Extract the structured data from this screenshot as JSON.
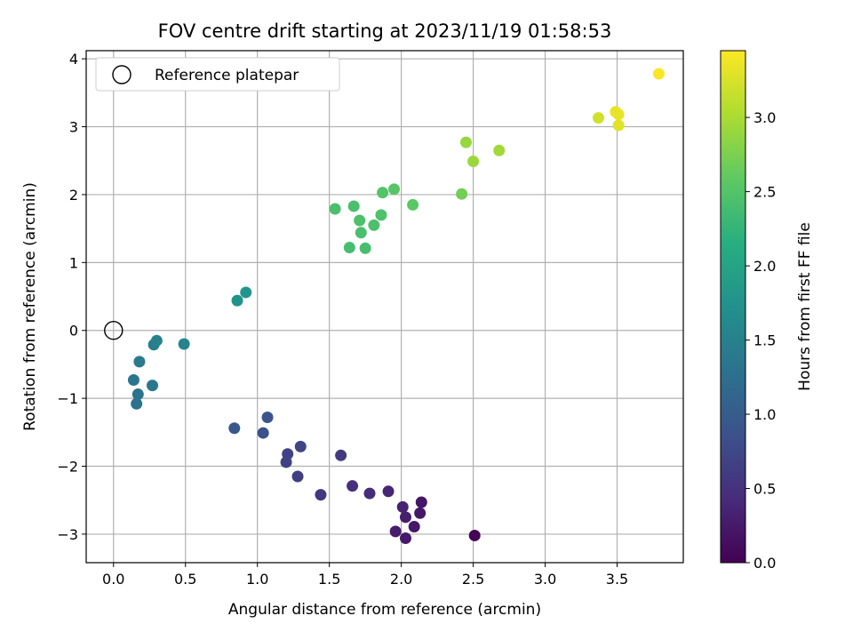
{
  "chart_data": {
    "type": "scatter",
    "title": "FOV centre drift starting at 2023/11/19 01:58:53",
    "xlabel": "Angular distance from reference (arcmin)",
    "ylabel": "Rotation from reference (arcmin)",
    "xlim": [
      -0.19,
      3.96
    ],
    "ylim": [
      -3.42,
      4.12
    ],
    "x_ticks": [
      0.0,
      0.5,
      1.0,
      1.5,
      2.0,
      2.5,
      3.0,
      3.5
    ],
    "x_tick_labels": [
      "0.0",
      "0.5",
      "1.0",
      "1.5",
      "2.0",
      "2.5",
      "3.0",
      "3.5"
    ],
    "y_ticks": [
      -3,
      -2,
      -1,
      0,
      1,
      2,
      3,
      4
    ],
    "y_tick_labels": [
      "−3",
      "−2",
      "−1",
      "0",
      "1",
      "2",
      "3",
      "4"
    ],
    "grid": true,
    "legend": {
      "placement": "top-left",
      "entries": [
        "Reference platepar"
      ]
    },
    "reference_point": {
      "x": 0.0,
      "y": 0.0
    },
    "colorbar": {
      "label": "Hours from first FF file",
      "colormap": "viridis",
      "range": [
        0.0,
        3.45
      ],
      "ticks": [
        0.0,
        0.5,
        1.0,
        1.5,
        2.0,
        2.5,
        3.0
      ],
      "tick_labels": [
        "0.0",
        "0.5",
        "1.0",
        "1.5",
        "2.0",
        "2.5",
        "3.0"
      ]
    },
    "points": [
      {
        "x": 2.51,
        "y": -3.02,
        "c": 0.02
      },
      {
        "x": 2.03,
        "y": -3.06,
        "c": 0.25
      },
      {
        "x": 1.96,
        "y": -2.96,
        "c": 0.27
      },
      {
        "x": 2.09,
        "y": -2.89,
        "c": 0.23
      },
      {
        "x": 2.03,
        "y": -2.75,
        "c": 0.3
      },
      {
        "x": 2.13,
        "y": -2.69,
        "c": 0.22
      },
      {
        "x": 2.01,
        "y": -2.6,
        "c": 0.33
      },
      {
        "x": 2.14,
        "y": -2.53,
        "c": 0.2
      },
      {
        "x": 1.91,
        "y": -2.37,
        "c": 0.37
      },
      {
        "x": 1.78,
        "y": -2.4,
        "c": 0.43
      },
      {
        "x": 1.66,
        "y": -2.29,
        "c": 0.47
      },
      {
        "x": 1.44,
        "y": -2.42,
        "c": 0.55
      },
      {
        "x": 1.28,
        "y": -2.15,
        "c": 0.63
      },
      {
        "x": 1.2,
        "y": -1.94,
        "c": 0.67
      },
      {
        "x": 1.21,
        "y": -1.82,
        "c": 0.7
      },
      {
        "x": 1.3,
        "y": -1.71,
        "c": 0.72
      },
      {
        "x": 1.58,
        "y": -1.84,
        "c": 0.6
      },
      {
        "x": 1.04,
        "y": -1.51,
        "c": 0.85
      },
      {
        "x": 1.07,
        "y": -1.28,
        "c": 0.9
      },
      {
        "x": 0.84,
        "y": -1.44,
        "c": 0.95
      },
      {
        "x": 0.16,
        "y": -1.08,
        "c": 1.3
      },
      {
        "x": 0.14,
        "y": -0.73,
        "c": 1.35
      },
      {
        "x": 0.17,
        "y": -0.94,
        "c": 1.32
      },
      {
        "x": 0.27,
        "y": -0.81,
        "c": 1.38
      },
      {
        "x": 0.18,
        "y": -0.46,
        "c": 1.42
      },
      {
        "x": 0.28,
        "y": -0.21,
        "c": 1.48
      },
      {
        "x": 0.3,
        "y": -0.15,
        "c": 1.5
      },
      {
        "x": 0.49,
        "y": -0.2,
        "c": 1.55
      },
      {
        "x": 0.86,
        "y": 0.44,
        "c": 1.75
      },
      {
        "x": 0.92,
        "y": 0.56,
        "c": 1.8
      },
      {
        "x": 1.54,
        "y": 1.79,
        "c": 2.42
      },
      {
        "x": 1.67,
        "y": 1.83,
        "c": 2.43
      },
      {
        "x": 1.71,
        "y": 1.62,
        "c": 2.45
      },
      {
        "x": 1.81,
        "y": 1.55,
        "c": 2.44
      },
      {
        "x": 1.86,
        "y": 1.7,
        "c": 2.46
      },
      {
        "x": 1.72,
        "y": 1.44,
        "c": 2.43
      },
      {
        "x": 1.64,
        "y": 1.22,
        "c": 2.4
      },
      {
        "x": 1.75,
        "y": 1.21,
        "c": 2.41
      },
      {
        "x": 1.87,
        "y": 2.03,
        "c": 2.5
      },
      {
        "x": 1.95,
        "y": 2.08,
        "c": 2.52
      },
      {
        "x": 2.08,
        "y": 1.85,
        "c": 2.55
      },
      {
        "x": 2.42,
        "y": 2.01,
        "c": 2.7
      },
      {
        "x": 2.45,
        "y": 2.77,
        "c": 2.9
      },
      {
        "x": 2.5,
        "y": 2.49,
        "c": 2.92
      },
      {
        "x": 2.68,
        "y": 2.65,
        "c": 2.95
      },
      {
        "x": 3.37,
        "y": 3.13,
        "c": 3.2
      },
      {
        "x": 3.49,
        "y": 3.22,
        "c": 3.35
      },
      {
        "x": 3.51,
        "y": 3.18,
        "c": 3.33
      },
      {
        "x": 3.51,
        "y": 3.02,
        "c": 3.3
      },
      {
        "x": 3.79,
        "y": 3.78,
        "c": 3.43
      }
    ]
  }
}
